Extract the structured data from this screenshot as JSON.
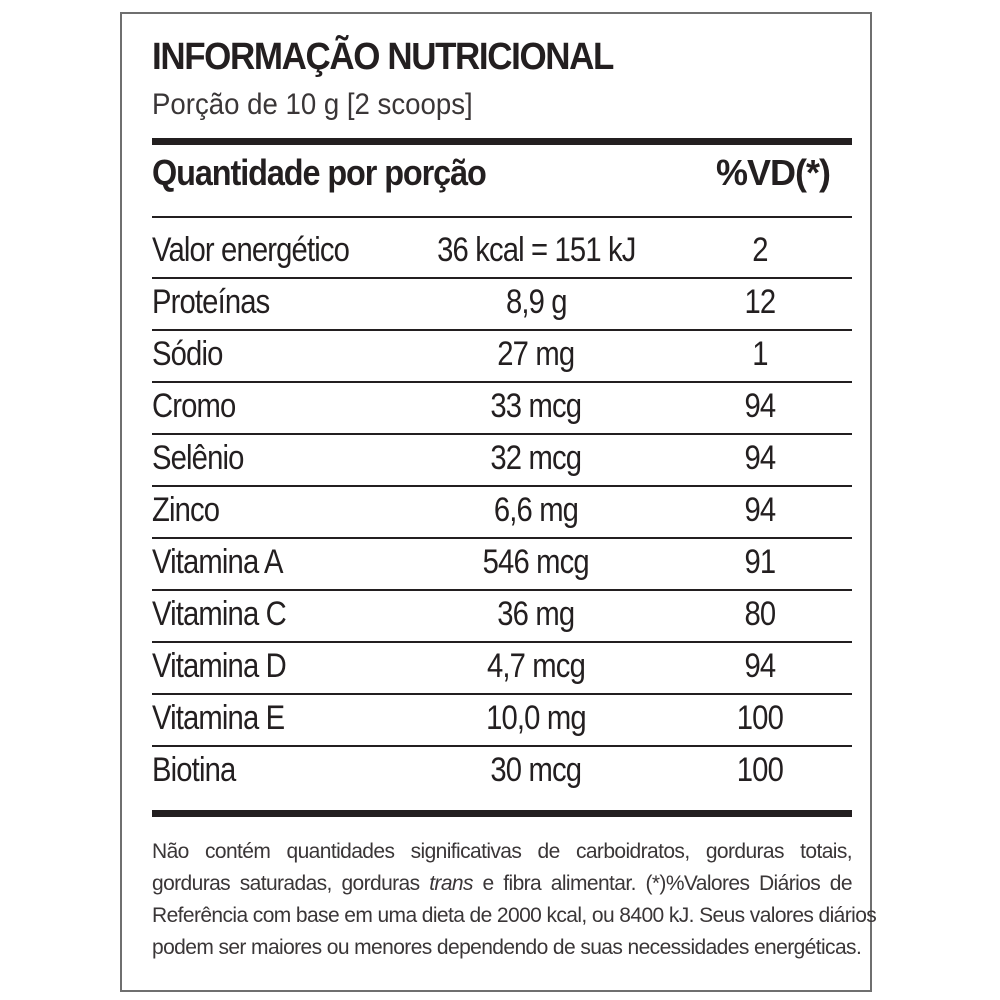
{
  "title": "INFORMAÇÃO NUTRICIONAL",
  "portion": "Porção de 10 g  [2 scoops]",
  "header": {
    "quantity": "Quantidade por porção",
    "vd": "%VD(*)"
  },
  "rows": [
    {
      "name": "Valor energético",
      "amount": "36 kcal = 151 kJ",
      "vd": "2"
    },
    {
      "name": "Proteínas",
      "amount": "8,9 g",
      "vd": "12"
    },
    {
      "name": "Sódio",
      "amount": "27 mg",
      "vd": "1"
    },
    {
      "name": "Cromo",
      "amount": "33 mcg",
      "vd": "94"
    },
    {
      "name": "Selênio",
      "amount": "32 mcg",
      "vd": "94"
    },
    {
      "name": "Zinco",
      "amount": "6,6 mg",
      "vd": "94"
    },
    {
      "name": "Vitamina A",
      "amount": "546 mcg",
      "vd": "91"
    },
    {
      "name": "Vitamina C",
      "amount": "36 mg",
      "vd": "80"
    },
    {
      "name": "Vitamina D",
      "amount": "4,7 mcg",
      "vd": "94"
    },
    {
      "name": "Vitamina E",
      "amount": "10,0 mg",
      "vd": "100"
    },
    {
      "name": "Biotina",
      "amount": "30 mcg",
      "vd": "100"
    }
  ],
  "footnote": {
    "line1": "Não contém quantidades significativas de carboidratos, gorduras totais,",
    "line2_before": "gorduras saturadas, gorduras",
    "line2_italic": "trans",
    "line2_after": "e fibra alimentar. (*)%Valores Diários de",
    "line3": "Referência com base em uma dieta de 2000 kcal, ou 8400 kJ. Seus valores diários",
    "line4": "podem ser maiores ou menores dependendo de suas necessidades energéticas."
  }
}
